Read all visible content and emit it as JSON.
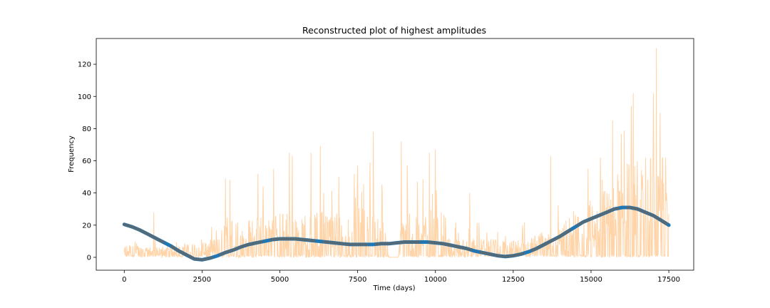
{
  "chart_data": {
    "type": "line",
    "title": "Reconstructed plot of highest amplitudes",
    "xlabel": "Time (days)",
    "ylabel": "Frequency",
    "xlim": [
      -900,
      18300
    ],
    "ylim": [
      -8,
      136
    ],
    "x_ticks": [
      0,
      2500,
      5000,
      7500,
      10000,
      12500,
      15000,
      17500
    ],
    "y_ticks": [
      0,
      20,
      40,
      60,
      80,
      100,
      120
    ],
    "x_tick_labels": [
      "0",
      "2500",
      "5000",
      "7500",
      "10000",
      "12500",
      "15000",
      "17500"
    ],
    "y_tick_labels": [
      "0",
      "20",
      "40",
      "60",
      "80",
      "100",
      "120"
    ],
    "grid": false,
    "series": [
      {
        "kind": "raw-signal",
        "color": "#ffcc99",
        "x_range": [
          0,
          17500
        ],
        "level_control_points": [
          [
            0,
            4
          ],
          [
            1000,
            3
          ],
          [
            2000,
            4
          ],
          [
            3000,
            6
          ],
          [
            3300,
            12
          ],
          [
            4000,
            12
          ],
          [
            5000,
            14
          ],
          [
            6000,
            14
          ],
          [
            7000,
            15
          ],
          [
            7500,
            16
          ],
          [
            8400,
            14
          ],
          [
            8500,
            0
          ],
          [
            8800,
            0
          ],
          [
            8900,
            12
          ],
          [
            9500,
            14
          ],
          [
            10000,
            14
          ],
          [
            10300,
            14
          ],
          [
            10400,
            6
          ],
          [
            11500,
            6
          ],
          [
            12500,
            5
          ],
          [
            13500,
            8
          ],
          [
            14500,
            14
          ],
          [
            15200,
            18
          ],
          [
            15500,
            22
          ],
          [
            16000,
            30
          ],
          [
            16500,
            30
          ],
          [
            17000,
            32
          ],
          [
            17500,
            26
          ]
        ],
        "spikes": [
          [
            950,
            28
          ],
          [
            3250,
            49
          ],
          [
            3400,
            48
          ],
          [
            4300,
            52
          ],
          [
            4800,
            55
          ],
          [
            5300,
            65
          ],
          [
            5400,
            63
          ],
          [
            6000,
            65
          ],
          [
            6300,
            69
          ],
          [
            6900,
            50
          ],
          [
            7500,
            57
          ],
          [
            7900,
            59
          ],
          [
            8000,
            78
          ],
          [
            8900,
            72
          ],
          [
            9100,
            57
          ],
          [
            9800,
            65
          ],
          [
            10000,
            67
          ],
          [
            11100,
            40
          ],
          [
            13700,
            63
          ],
          [
            14900,
            55
          ],
          [
            15300,
            62
          ],
          [
            15700,
            85
          ],
          [
            16300,
            94
          ],
          [
            17000,
            102
          ],
          [
            17100,
            130
          ],
          [
            17300,
            62
          ],
          [
            17400,
            62
          ]
        ]
      },
      {
        "kind": "fitted-curve",
        "color": "#1f77b4",
        "overlay_color": "#666666",
        "points": [
          [
            0,
            20.5
          ],
          [
            250,
            19
          ],
          [
            500,
            17
          ],
          [
            750,
            14.5
          ],
          [
            1000,
            12
          ],
          [
            1250,
            9.5
          ],
          [
            1500,
            7
          ],
          [
            1750,
            4
          ],
          [
            2000,
            1.5
          ],
          [
            2250,
            -1
          ],
          [
            2500,
            -1.5
          ],
          [
            2750,
            -0.5
          ],
          [
            3000,
            1
          ],
          [
            3250,
            3
          ],
          [
            3500,
            4.5
          ],
          [
            3750,
            6.5
          ],
          [
            4000,
            8
          ],
          [
            4250,
            9
          ],
          [
            4500,
            10
          ],
          [
            4750,
            11
          ],
          [
            5000,
            11.5
          ],
          [
            5250,
            11.5
          ],
          [
            5500,
            11.5
          ],
          [
            5750,
            11
          ],
          [
            6000,
            10.5
          ],
          [
            6250,
            10
          ],
          [
            6500,
            9.5
          ],
          [
            6750,
            9
          ],
          [
            7000,
            8.5
          ],
          [
            7250,
            8
          ],
          [
            7500,
            8
          ],
          [
            7750,
            8
          ],
          [
            8000,
            8
          ],
          [
            8250,
            8.5
          ],
          [
            8500,
            8.5
          ],
          [
            8750,
            9
          ],
          [
            9000,
            9.5
          ],
          [
            9250,
            9.5
          ],
          [
            9500,
            9.5
          ],
          [
            9750,
            9.5
          ],
          [
            10000,
            9
          ],
          [
            10250,
            8.5
          ],
          [
            10500,
            7.5
          ],
          [
            10750,
            6.5
          ],
          [
            11000,
            5.5
          ],
          [
            11250,
            4
          ],
          [
            11500,
            3
          ],
          [
            11750,
            2
          ],
          [
            12000,
            1
          ],
          [
            12250,
            0.5
          ],
          [
            12500,
            1
          ],
          [
            12750,
            2
          ],
          [
            13000,
            3.5
          ],
          [
            13250,
            5.5
          ],
          [
            13500,
            8
          ],
          [
            13750,
            10.5
          ],
          [
            14000,
            13
          ],
          [
            14250,
            16
          ],
          [
            14500,
            19
          ],
          [
            14750,
            22
          ],
          [
            15000,
            24
          ],
          [
            15250,
            26
          ],
          [
            15500,
            28
          ],
          [
            15750,
            30
          ],
          [
            16000,
            31
          ],
          [
            16250,
            31
          ],
          [
            16500,
            30
          ],
          [
            16750,
            28
          ],
          [
            17000,
            26
          ],
          [
            17250,
            23
          ],
          [
            17500,
            20
          ]
        ]
      }
    ]
  }
}
